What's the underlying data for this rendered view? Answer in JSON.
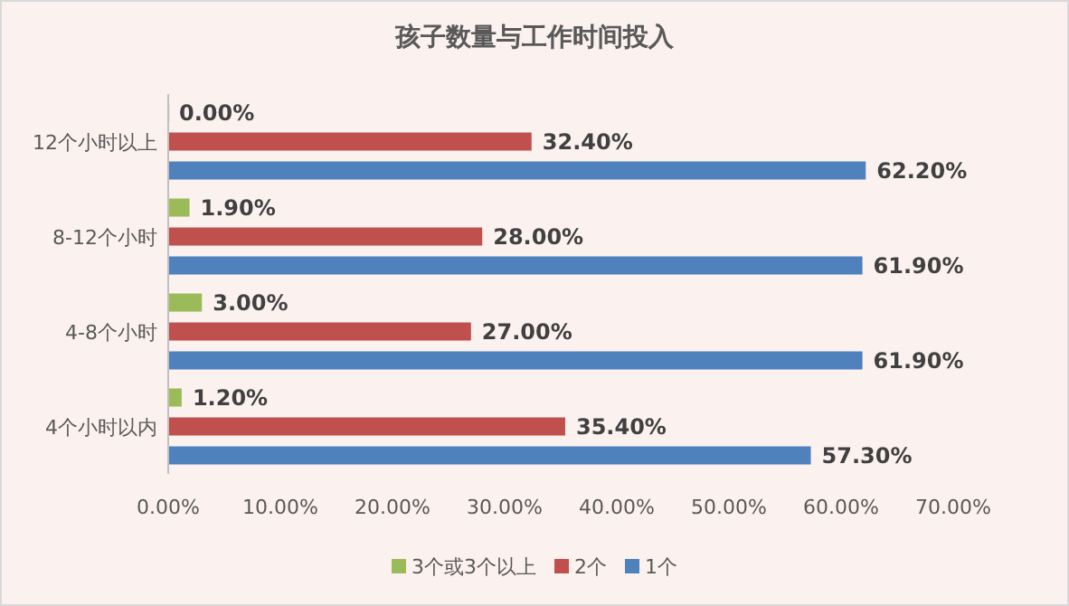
{
  "chart_data": {
    "type": "bar",
    "orientation": "horizontal",
    "title": "孩子数量与工作时间投入",
    "categories": [
      "12个小时以上",
      "8-12个小时",
      "4-8个小时",
      "4个小时以内"
    ],
    "series": [
      {
        "name": "3个或3个以上",
        "color": "#9bbb59",
        "values": [
          0,
          1.9,
          3.0,
          1.2
        ],
        "value_labels": [
          "0.00%",
          "1.90%",
          "3.00%",
          "1.20%"
        ]
      },
      {
        "name": "2个",
        "color": "#c0504d",
        "values": [
          32.4,
          28.0,
          27.0,
          35.4
        ],
        "value_labels": [
          "32.40%",
          "28.00%",
          "27.00%",
          "35.40%"
        ]
      },
      {
        "name": "1个",
        "color": "#4f81bd",
        "values": [
          62.2,
          61.9,
          61.9,
          57.3
        ],
        "value_labels": [
          "62.20%",
          "61.90%",
          "61.90%",
          "57.30%"
        ]
      }
    ],
    "xlim": [
      0,
      70
    ],
    "xticks": [
      {
        "value": 0,
        "label": "0.00%"
      },
      {
        "value": 10,
        "label": "10.00%"
      },
      {
        "value": 20,
        "label": "20.00%"
      },
      {
        "value": 30,
        "label": "30.00%"
      },
      {
        "value": 40,
        "label": "40.00%"
      },
      {
        "value": 50,
        "label": "50.00%"
      },
      {
        "value": 60,
        "label": "60.00%"
      },
      {
        "value": 70,
        "label": "70.00%"
      }
    ],
    "legend": "bottom"
  }
}
